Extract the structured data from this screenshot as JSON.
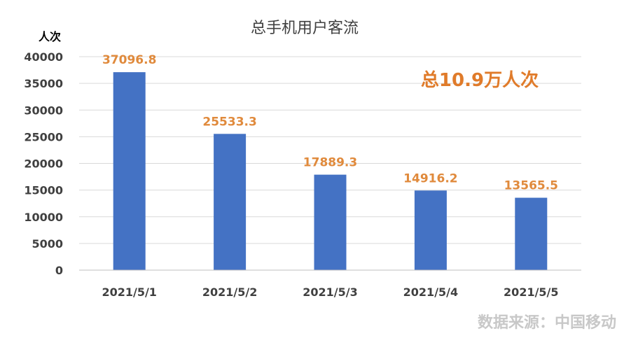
{
  "chart_data": {
    "type": "bar",
    "title": "总手机用户客流",
    "unit_label": "人次",
    "categories": [
      "2021/5/1",
      "2021/5/2",
      "2021/5/3",
      "2021/5/4",
      "2021/5/5"
    ],
    "values": [
      37096.8,
      25533.3,
      17889.3,
      14916.2,
      13565.5
    ],
    "data_labels": [
      "37096.8",
      "25533.3",
      "17889.3",
      "14916.2",
      "13565.5"
    ],
    "ylim": [
      0,
      40000
    ],
    "yticks": [
      0,
      5000,
      10000,
      15000,
      20000,
      25000,
      30000,
      35000,
      40000
    ],
    "grid": true,
    "annotation": "总10.9万人次",
    "source": "数据来源：中国移动",
    "colors": {
      "bar": "#4472c4",
      "label": "#e08a3c",
      "grid": "#d9d9d9"
    }
  }
}
